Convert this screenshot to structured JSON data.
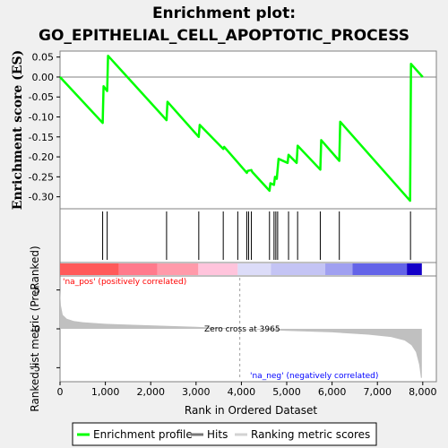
{
  "chart_data": {
    "type": "line",
    "title": "Enrichment plot:",
    "subtitle": "GO_EPITHELIAL_CELL_APOPTOTIC_PROCESS",
    "es_panel": {
      "ylabel": "Enrichment score (ES)",
      "ylim": [
        -0.33,
        0.065
      ],
      "yticks": [
        0.05,
        0.0,
        -0.05,
        -0.1,
        -0.15,
        -0.2,
        -0.25,
        -0.3
      ],
      "ytick_labels": [
        "0.05",
        "0.00",
        "-0.05",
        "-0.10",
        "-0.15",
        "-0.20",
        "-0.25",
        "-0.30"
      ],
      "series": {
        "name": "Enrichment profile",
        "color": "#00ff00",
        "x": [
          0,
          940,
          960,
          1040,
          1060,
          2350,
          2370,
          3060,
          3080,
          3600,
          3620,
          4120,
          4140,
          4220,
          4240,
          4620,
          4640,
          4720,
          4740,
          4780,
          4800,
          4820,
          5020,
          5040,
          5220,
          5240,
          5740,
          5760,
          6160,
          6180,
          7720,
          7740,
          8000
        ],
        "y": [
          0.0,
          -0.115,
          -0.023,
          -0.035,
          0.053,
          -0.108,
          -0.062,
          -0.15,
          -0.12,
          -0.18,
          -0.175,
          -0.24,
          -0.235,
          -0.233,
          -0.238,
          -0.285,
          -0.266,
          -0.27,
          -0.25,
          -0.255,
          -0.23,
          -0.205,
          -0.215,
          -0.195,
          -0.215,
          -0.172,
          -0.232,
          -0.158,
          -0.21,
          -0.112,
          -0.31,
          0.033,
          0.0
        ]
      }
    },
    "hits": [
      940,
      1040,
      2350,
      3060,
      3600,
      3920,
      4120,
      4160,
      4220,
      4620,
      4720,
      4760,
      4800,
      5040,
      5240,
      5740,
      6160,
      7730
    ],
    "ranking_bar": {
      "segments": [
        {
          "from": 0,
          "to": 1300,
          "color": "#ff5a5a"
        },
        {
          "from": 1300,
          "to": 2150,
          "color": "#ff7a8c"
        },
        {
          "from": 2150,
          "to": 3050,
          "color": "#ff9aaa"
        },
        {
          "from": 3050,
          "to": 3920,
          "color": "#ffc4dc"
        },
        {
          "from": 3920,
          "to": 4650,
          "color": "#dcdcf8"
        },
        {
          "from": 4650,
          "to": 5850,
          "color": "#c4c4f4"
        },
        {
          "from": 5850,
          "to": 6450,
          "color": "#a0a0f0"
        },
        {
          "from": 6450,
          "to": 7650,
          "color": "#6464e8"
        },
        {
          "from": 7650,
          "to": 7980,
          "color": "#1400c8"
        }
      ]
    },
    "metric_panel": {
      "ylabel": "Ranked list metric (PreRanked)",
      "ylim": [
        -6.8,
        6.8
      ],
      "yticks": [
        5,
        0,
        -5
      ],
      "ytick_labels": [
        "5",
        "0",
        "-5"
      ],
      "zero_cross_label": "Zero cross at 3965",
      "zero_cross": 3965,
      "pos_label": "'na_pos' (positively correlated)",
      "neg_label": "'na_neg' (negatively correlated)",
      "pos_color": "#ff0000",
      "neg_color": "#0000ff",
      "fill_color": "#c0c0c0",
      "profile_x": [
        0,
        20,
        60,
        150,
        300,
        500,
        1000,
        2000,
        3000,
        3965,
        5000,
        6000,
        6800,
        7300,
        7600,
        7750,
        7850,
        7920,
        7960,
        7980
      ],
      "profile_y": [
        5.0,
        3.0,
        1.8,
        1.3,
        1.0,
        0.85,
        0.65,
        0.45,
        0.25,
        0.0,
        -0.25,
        -0.45,
        -0.75,
        -1.05,
        -1.5,
        -2.1,
        -3.0,
        -4.6,
        -6.3,
        -6.3
      ]
    },
    "xlabel": "Rank in Ordered Dataset",
    "xlim": [
      0,
      8300
    ],
    "xticks": [
      0,
      1000,
      2000,
      3000,
      4000,
      5000,
      6000,
      7000,
      8000
    ],
    "xtick_labels": [
      "0",
      "1,000",
      "2,000",
      "3,000",
      "4,000",
      "5,000",
      "6,000",
      "7,000",
      "8,000"
    ],
    "legend": {
      "placement": "bottom",
      "items": [
        {
          "label": "Enrichment profile",
          "color": "#00ff00"
        },
        {
          "label": "Hits",
          "color": "#777777"
        },
        {
          "label": "Ranking metric scores",
          "color": "#d3d3d3"
        }
      ]
    }
  }
}
